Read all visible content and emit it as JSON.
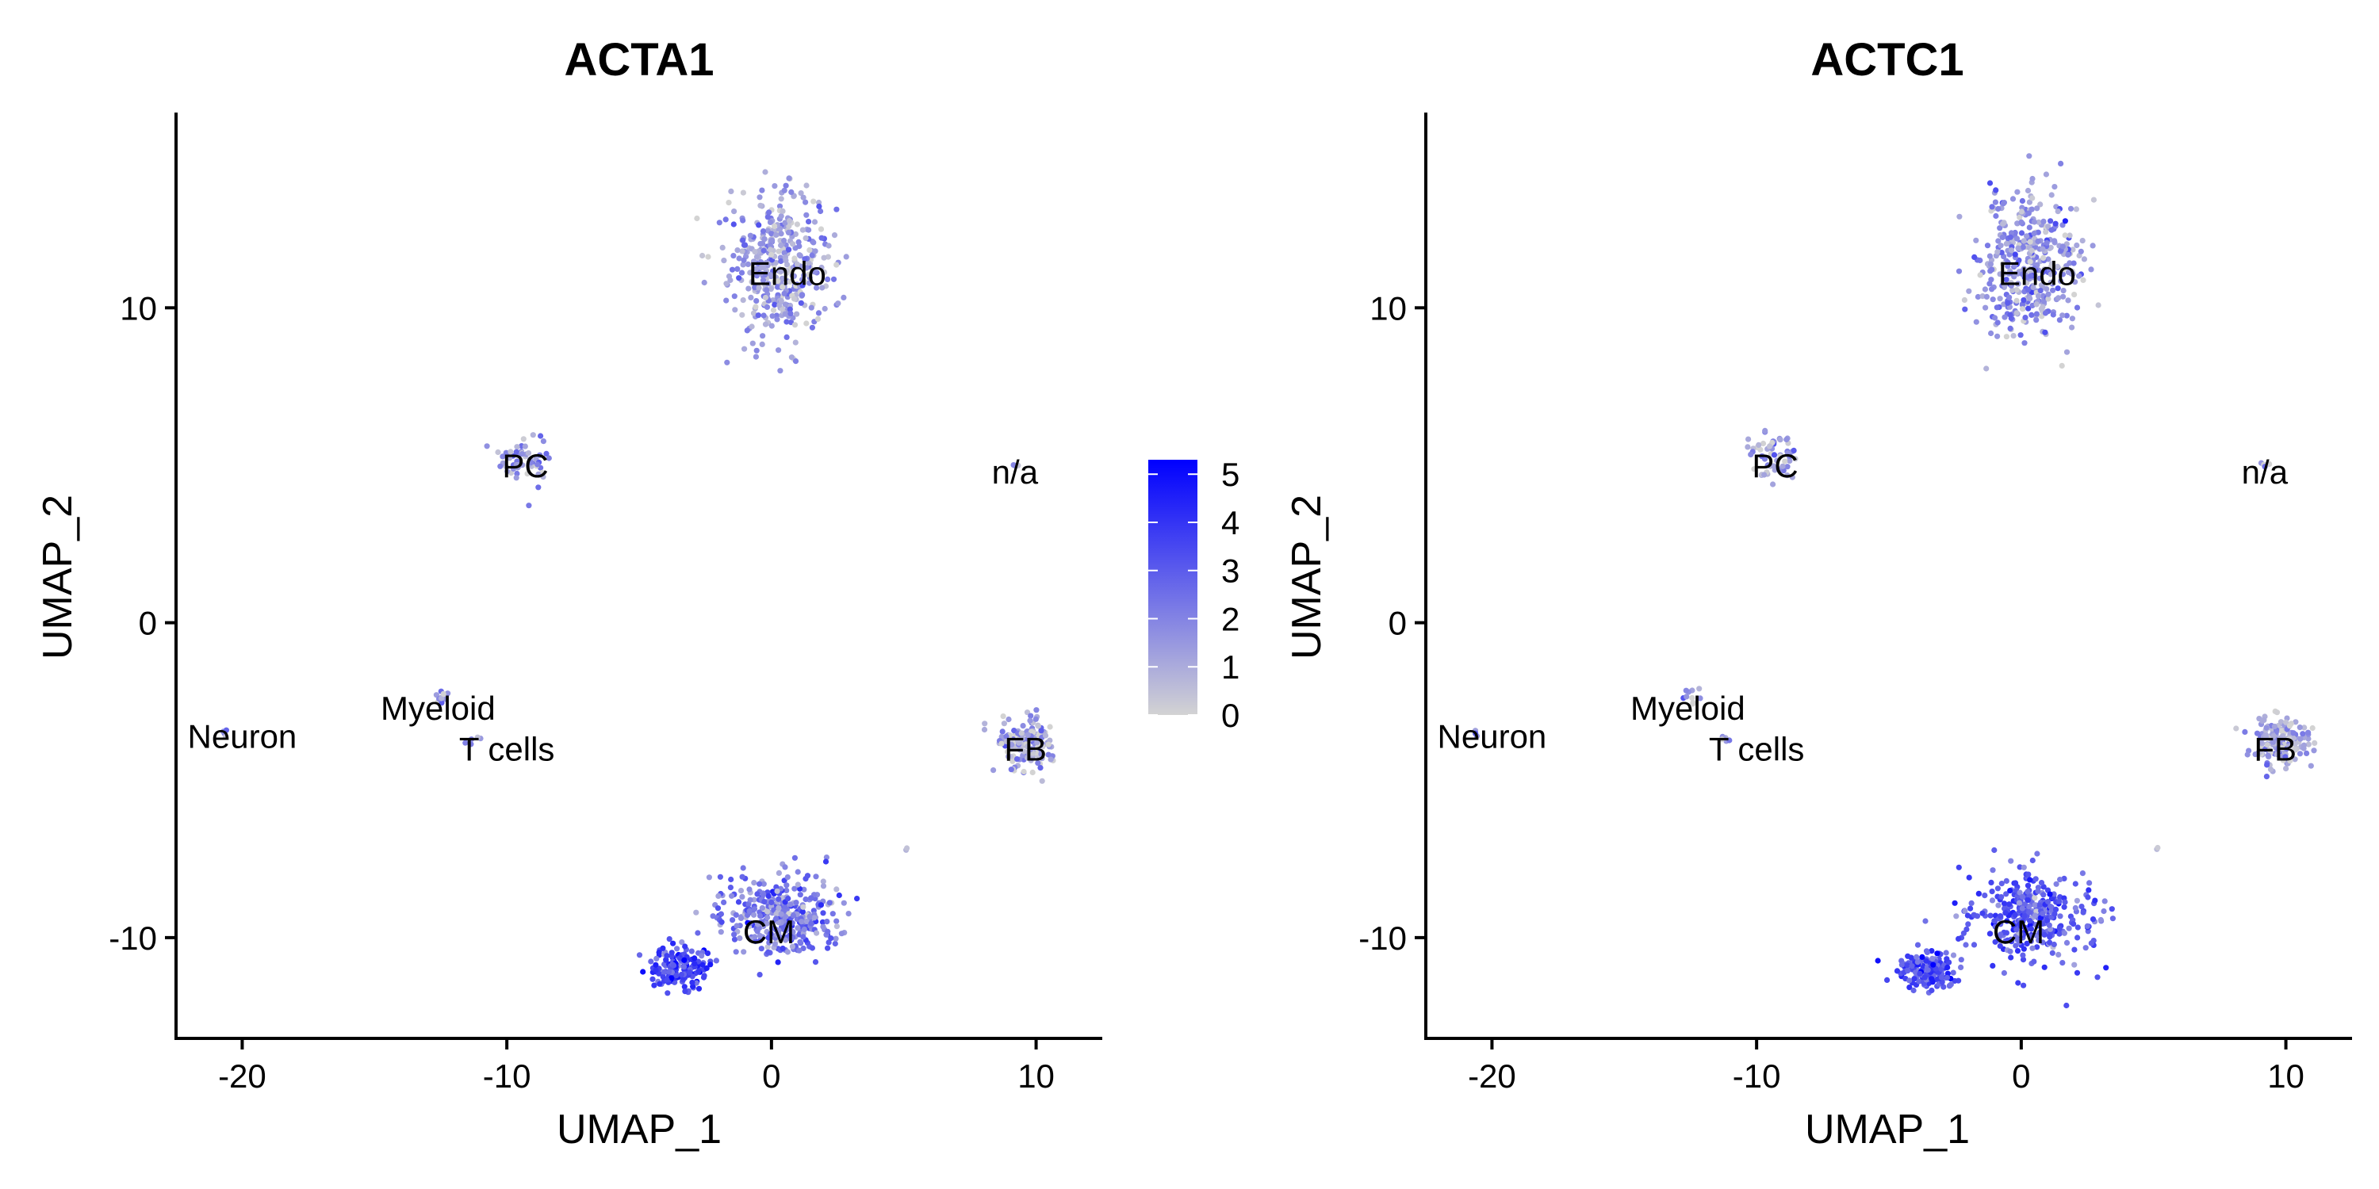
{
  "chart_data": [
    {
      "type": "scatter",
      "title": "ACTA1",
      "xlabel": "UMAP_1",
      "ylabel": "UMAP_2",
      "xlim": [
        -22.5,
        12.5
      ],
      "ylim": [
        -13.2,
        16.2
      ],
      "xticks": [
        -20,
        -10,
        0,
        10
      ],
      "yticks": [
        -10,
        0,
        10
      ],
      "grid": false,
      "clusters": [
        {
          "name": "Endo",
          "center": [
            0.3,
            11.3
          ],
          "spread": [
            1.8,
            2.0
          ],
          "n": 420,
          "expression": 1.3,
          "label_at": [
            0.6,
            11.1
          ]
        },
        {
          "name": "PC",
          "center": [
            -9.3,
            5.2
          ],
          "spread": [
            0.9,
            0.8
          ],
          "n": 60,
          "expression": 1.5,
          "label_at": [
            -9.3,
            5.0
          ]
        },
        {
          "name": "n/a",
          "center": [
            9.2,
            5.0
          ],
          "spread": [
            0.15,
            0.1
          ],
          "n": 4,
          "expression": 1.0,
          "label_at": [
            9.2,
            4.8
          ]
        },
        {
          "name": "Myeloid",
          "center": [
            -12.4,
            -2.3
          ],
          "spread": [
            0.3,
            0.3
          ],
          "n": 10,
          "expression": 1.2,
          "label_at": [
            -12.6,
            -2.7
          ]
        },
        {
          "name": "T cells",
          "center": [
            -11.2,
            -3.7
          ],
          "spread": [
            0.3,
            0.15
          ],
          "n": 6,
          "expression": 1.0,
          "label_at": [
            -10.0,
            -4.0
          ]
        },
        {
          "name": "Neuron",
          "center": [
            -20.6,
            -3.5
          ],
          "spread": [
            0.2,
            0.15
          ],
          "n": 4,
          "expression": 1.0,
          "label_at": [
            -20.0,
            -3.6
          ]
        },
        {
          "name": "FB",
          "center": [
            9.7,
            -3.8
          ],
          "spread": [
            1.0,
            0.7
          ],
          "n": 170,
          "expression": 1.0,
          "label_at": [
            9.6,
            -4.0
          ]
        },
        {
          "name": "CM",
          "center": [
            0.4,
            -9.3
          ],
          "spread": [
            2.2,
            1.3
          ],
          "n": 360,
          "expression": 2.2,
          "label_at": [
            -0.1,
            -9.8
          ]
        },
        {
          "name": "",
          "center": [
            -3.5,
            -11.0
          ],
          "spread": [
            1.0,
            0.6
          ],
          "n": 160,
          "expression": 3.6,
          "label_at": null
        },
        {
          "name": "",
          "center": [
            5.1,
            -7.2
          ],
          "spread": [
            0.05,
            0.05
          ],
          "n": 2,
          "expression": 0.5,
          "label_at": null
        }
      ],
      "color_scale": {
        "low": "#d3d3d3",
        "high": "#0000ff",
        "min": 0,
        "max": 5.3
      }
    },
    {
      "type": "scatter",
      "title": "ACTC1",
      "xlabel": "UMAP_1",
      "ylabel": "UMAP_2",
      "xlim": [
        -22.5,
        12.5
      ],
      "ylim": [
        -13.2,
        16.2
      ],
      "xticks": [
        -20,
        -10,
        0,
        10
      ],
      "yticks": [
        -10,
        0,
        10
      ],
      "grid": false,
      "clusters": [
        {
          "name": "Endo",
          "center": [
            0.3,
            11.3
          ],
          "spread": [
            1.8,
            2.0
          ],
          "n": 420,
          "expression": 1.6,
          "label_at": [
            0.6,
            11.1
          ]
        },
        {
          "name": "PC",
          "center": [
            -9.3,
            5.2
          ],
          "spread": [
            0.9,
            0.8
          ],
          "n": 60,
          "expression": 1.3,
          "label_at": [
            -9.3,
            5.0
          ]
        },
        {
          "name": "n/a",
          "center": [
            9.2,
            5.0
          ],
          "spread": [
            0.15,
            0.1
          ],
          "n": 4,
          "expression": 1.0,
          "label_at": [
            9.2,
            4.8
          ]
        },
        {
          "name": "Myeloid",
          "center": [
            -12.4,
            -2.3
          ],
          "spread": [
            0.3,
            0.3
          ],
          "n": 10,
          "expression": 1.0,
          "label_at": [
            -12.6,
            -2.7
          ]
        },
        {
          "name": "T cells",
          "center": [
            -11.2,
            -3.7
          ],
          "spread": [
            0.3,
            0.15
          ],
          "n": 6,
          "expression": 0.8,
          "label_at": [
            -10.0,
            -4.0
          ]
        },
        {
          "name": "Neuron",
          "center": [
            -20.6,
            -3.5
          ],
          "spread": [
            0.2,
            0.15
          ],
          "n": 4,
          "expression": 0.8,
          "label_at": [
            -20.0,
            -3.6
          ]
        },
        {
          "name": "FB",
          "center": [
            9.7,
            -3.8
          ],
          "spread": [
            1.0,
            0.7
          ],
          "n": 170,
          "expression": 1.0,
          "label_at": [
            9.6,
            -4.0
          ]
        },
        {
          "name": "CM",
          "center": [
            0.4,
            -9.3
          ],
          "spread": [
            2.2,
            1.3
          ],
          "n": 360,
          "expression": 3.0,
          "label_at": [
            -0.1,
            -9.8
          ]
        },
        {
          "name": "",
          "center": [
            -3.5,
            -11.0
          ],
          "spread": [
            1.0,
            0.6
          ],
          "n": 160,
          "expression": 3.3,
          "label_at": null
        },
        {
          "name": "",
          "center": [
            5.1,
            -7.2
          ],
          "spread": [
            0.05,
            0.05
          ],
          "n": 2,
          "expression": 0.5,
          "label_at": null
        }
      ],
      "color_scale": {
        "low": "#d3d3d3",
        "high": "#0000ff",
        "min": 0,
        "max": 5.3
      }
    }
  ],
  "legend": {
    "placement": "between-panels",
    "ticks": [
      "0",
      "1",
      "2",
      "3",
      "4",
      "5"
    ],
    "tick_values": [
      0,
      1,
      2,
      3,
      4,
      5
    ],
    "min": 0,
    "max": 5.3,
    "low_color": "#d3d3d3",
    "high_color": "#0000ff"
  }
}
